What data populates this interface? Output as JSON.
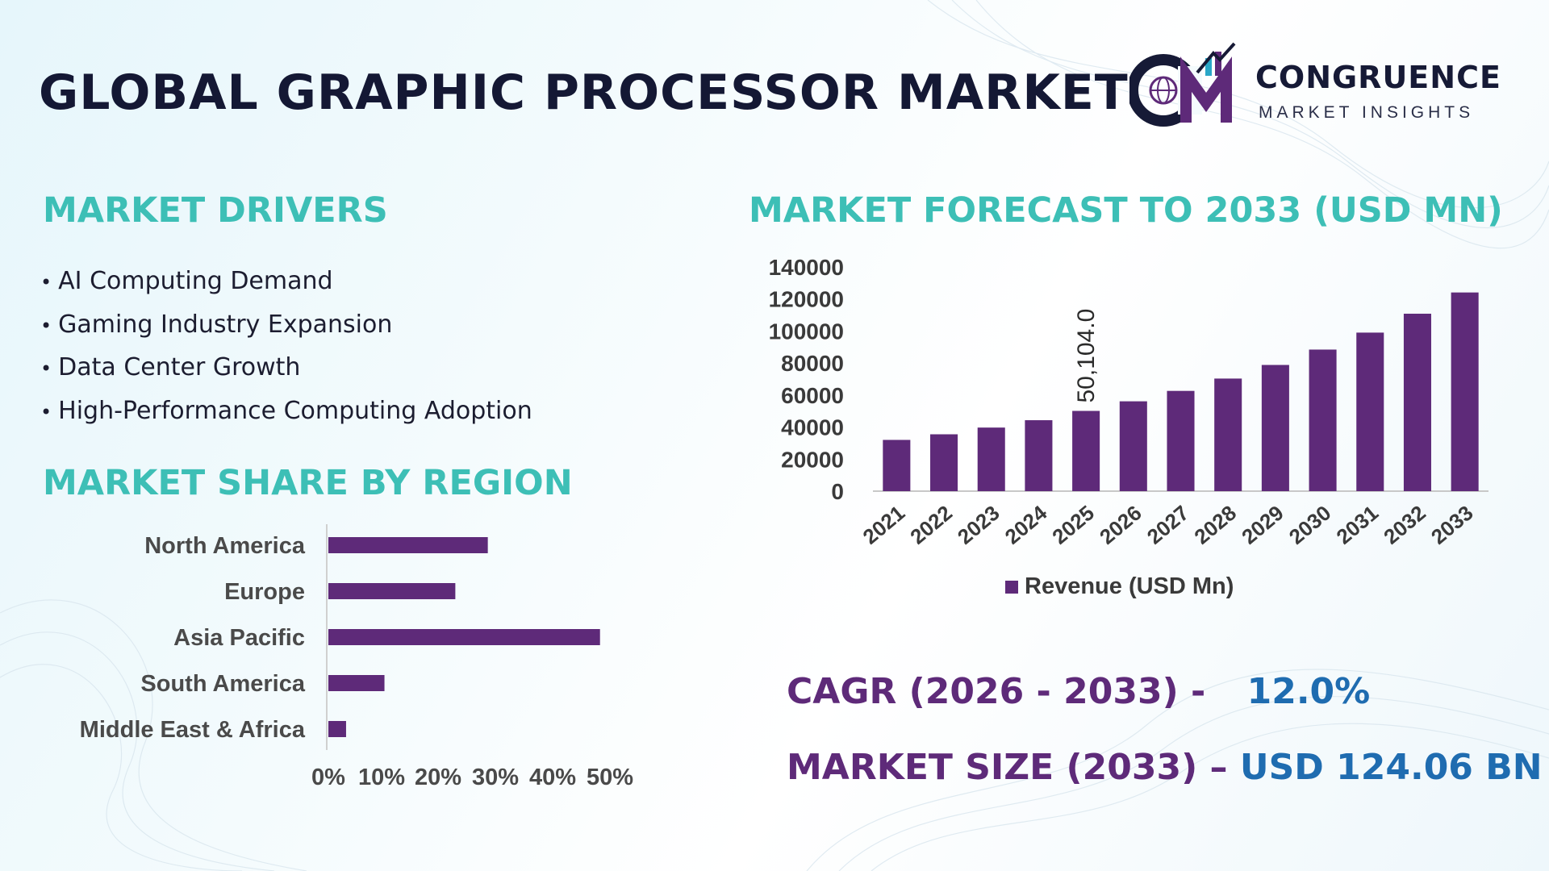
{
  "header": {
    "title": "GLOBAL GRAPHIC PROCESSOR MARKET",
    "brand_name": "CONGRUENCE",
    "brand_tagline": "MARKET INSIGHTS"
  },
  "drivers": {
    "heading": "MARKET DRIVERS",
    "items": [
      "AI Computing Demand",
      "Gaming Industry Expansion",
      "Data Center Growth",
      "High-Performance Computing Adoption"
    ]
  },
  "region": {
    "heading": "MARKET SHARE BY REGION"
  },
  "forecast": {
    "heading": "MARKET FORECAST TO 2033 (USD MN)"
  },
  "stats": {
    "cagr_label": "CAGR (2026 - 2033) -",
    "cagr_value": "12.0%",
    "size_label": "MARKET SIZE (2033) –",
    "size_value": "USD 124.06 BN"
  },
  "colors": {
    "bar": "#5e2a79",
    "heading": "#3dbfb6",
    "stat_label": "#5e2a79",
    "stat_value": "#1f6cb0"
  },
  "chart_data": [
    {
      "type": "bar",
      "orientation": "vertical",
      "categories": [
        "2021",
        "2022",
        "2023",
        "2024",
        "2025",
        "2026",
        "2027",
        "2028",
        "2029",
        "2030",
        "2031",
        "2032",
        "2033"
      ],
      "series": [
        {
          "name": "Revenue (USD Mn)",
          "values": [
            32000,
            35500,
            39700,
            44300,
            50104,
            56100,
            62600,
            70300,
            78800,
            88400,
            99000,
            110800,
            124060
          ]
        }
      ],
      "data_labels": [
        {
          "index": 4,
          "text": "50,104.0"
        }
      ],
      "yticks": [
        "0",
        "20000",
        "40000",
        "60000",
        "80000",
        "100000",
        "120000",
        "140000"
      ],
      "ylim": [
        0,
        140000
      ],
      "legend": "bottom",
      "grid": false
    },
    {
      "type": "bar",
      "orientation": "horizontal",
      "categories": [
        "North America",
        "Europe",
        "Asia Pacific",
        "South America",
        "Middle East & Africa"
      ],
      "values": [
        27,
        21.5,
        46,
        9.5,
        3
      ],
      "xticks": [
        "0%",
        "10%",
        "20%",
        "30%",
        "40%",
        "50%"
      ],
      "xlim": [
        0,
        50
      ],
      "grid": false
    }
  ]
}
